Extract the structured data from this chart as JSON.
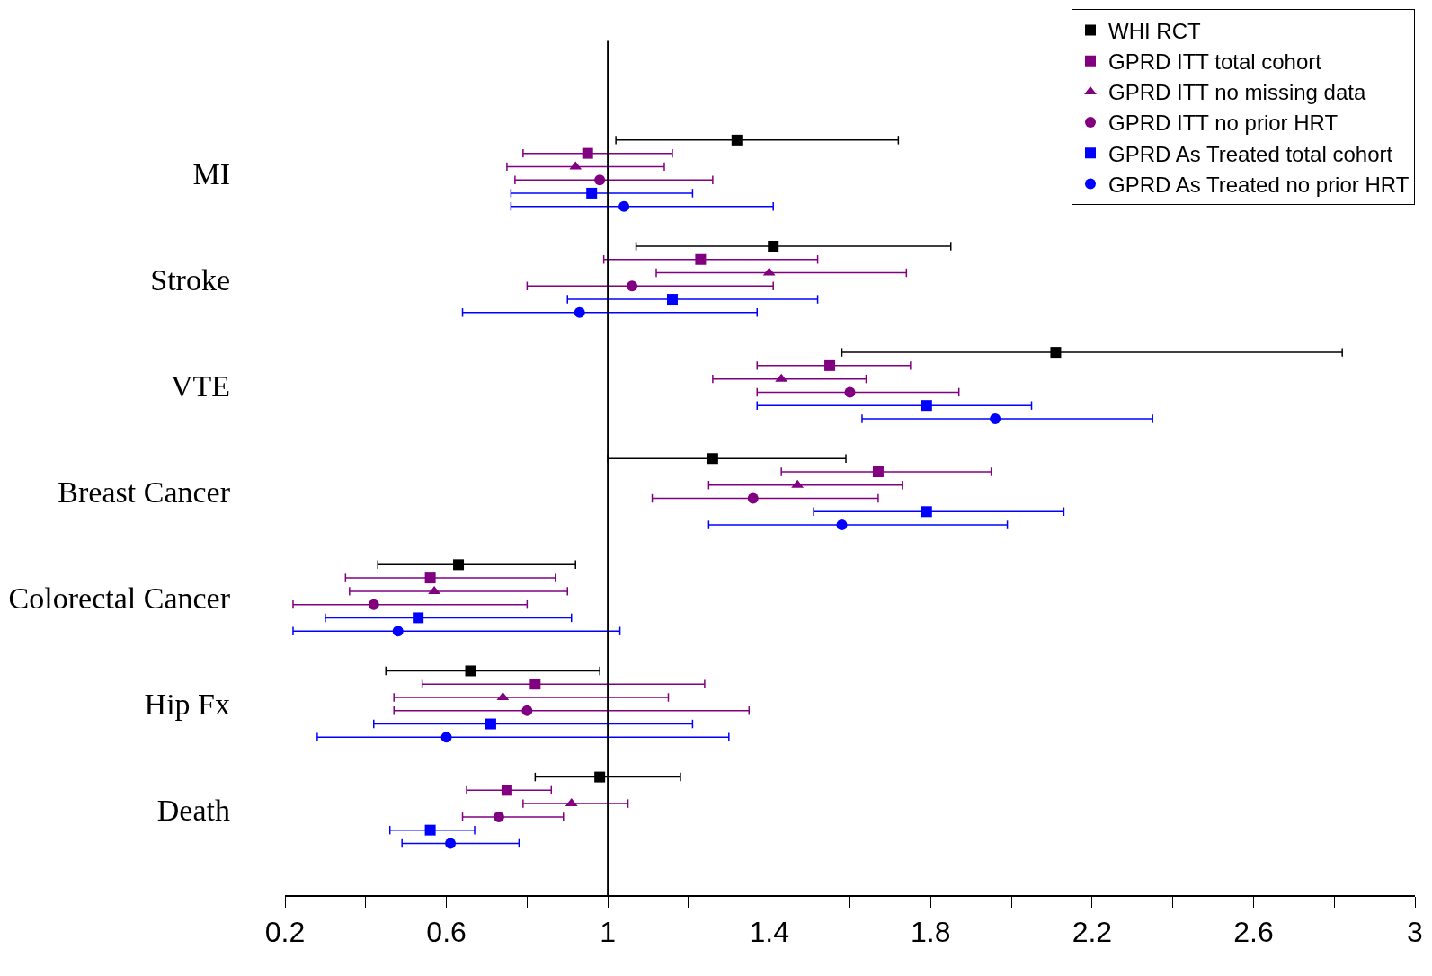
{
  "chart_data": {
    "type": "scatter",
    "orientation": "horizontal",
    "categories": [
      "MI",
      "Stroke",
      "VTE",
      "Breast Cancer",
      "Colorectal Cancer",
      "Hip Fx",
      "Death"
    ],
    "series": [
      {
        "name": "WHI RCT",
        "color": "#000000",
        "marker": "square",
        "values": [
          1.32,
          1.41,
          2.11,
          1.26,
          0.63,
          0.66,
          0.98
        ],
        "errors": [
          [
            1.02,
            1.72
          ],
          [
            1.07,
            1.85
          ],
          [
            1.58,
            2.82
          ],
          [
            1.0,
            1.59
          ],
          [
            0.43,
            0.92
          ],
          [
            0.45,
            0.98
          ],
          [
            0.82,
            1.18
          ]
        ]
      },
      {
        "name": "GPRD ITT total cohort",
        "color": "#800080",
        "marker": "square",
        "values": [
          0.95,
          1.23,
          1.55,
          1.67,
          0.56,
          0.82,
          0.75
        ],
        "errors": [
          [
            0.79,
            1.16
          ],
          [
            0.99,
            1.52
          ],
          [
            1.37,
            1.75
          ],
          [
            1.43,
            1.95
          ],
          [
            0.35,
            0.87
          ],
          [
            0.54,
            1.24
          ],
          [
            0.65,
            0.86
          ]
        ]
      },
      {
        "name": "GPRD ITT no missing data",
        "color": "#800080",
        "marker": "triangle",
        "values": [
          0.92,
          1.4,
          1.43,
          1.47,
          0.57,
          0.74,
          0.91
        ],
        "errors": [
          [
            0.75,
            1.14
          ],
          [
            1.12,
            1.74
          ],
          [
            1.26,
            1.64
          ],
          [
            1.25,
            1.73
          ],
          [
            0.36,
            0.9
          ],
          [
            0.47,
            1.15
          ],
          [
            0.79,
            1.05
          ]
        ]
      },
      {
        "name": "GPRD ITT no prior HRT",
        "color": "#800080",
        "marker": "circle",
        "values": [
          0.98,
          1.06,
          1.6,
          1.36,
          0.42,
          0.8,
          0.73
        ],
        "errors": [
          [
            0.77,
            1.26
          ],
          [
            0.8,
            1.41
          ],
          [
            1.37,
            1.87
          ],
          [
            1.11,
            1.67
          ],
          [
            0.22,
            0.8
          ],
          [
            0.47,
            1.35
          ],
          [
            0.64,
            0.89
          ]
        ]
      },
      {
        "name": "GPRD As Treated total cohort",
        "color": "#0000ff",
        "marker": "square",
        "values": [
          0.96,
          1.16,
          1.79,
          1.79,
          0.53,
          0.71,
          0.56
        ],
        "errors": [
          [
            0.76,
            1.21
          ],
          [
            0.9,
            1.52
          ],
          [
            1.37,
            2.05
          ],
          [
            1.51,
            2.13
          ],
          [
            0.3,
            0.91
          ],
          [
            0.42,
            1.21
          ],
          [
            0.46,
            0.67
          ]
        ]
      },
      {
        "name": "GPRD As Treated no prior HRT",
        "color": "#0000ff",
        "marker": "circle",
        "values": [
          1.04,
          0.93,
          1.96,
          1.58,
          0.48,
          0.6,
          0.61
        ],
        "errors": [
          [
            0.76,
            1.41
          ],
          [
            0.64,
            1.37
          ],
          [
            1.63,
            2.35
          ],
          [
            1.25,
            1.99
          ],
          [
            0.22,
            1.03
          ],
          [
            0.28,
            1.3
          ],
          [
            0.49,
            0.78
          ]
        ]
      }
    ],
    "xlim": [
      0.2,
      3
    ],
    "xticks": [
      0.2,
      {
        "value": 0.4,
        "label": null
      },
      0.6,
      {
        "value": 0.8,
        "label": null
      },
      1,
      {
        "value": 1.2,
        "label": null
      },
      1.4,
      {
        "value": 1.6,
        "label": null
      },
      1.8,
      {
        "value": 2.0,
        "label": null
      },
      2.2,
      {
        "value": 2.4,
        "label": null
      },
      2.6,
      {
        "value": 2.8,
        "label": null
      },
      3
    ],
    "ref_lines": [
      {
        "axis": "x",
        "value": 1,
        "color": "#000000"
      }
    ],
    "legend": "top right"
  }
}
